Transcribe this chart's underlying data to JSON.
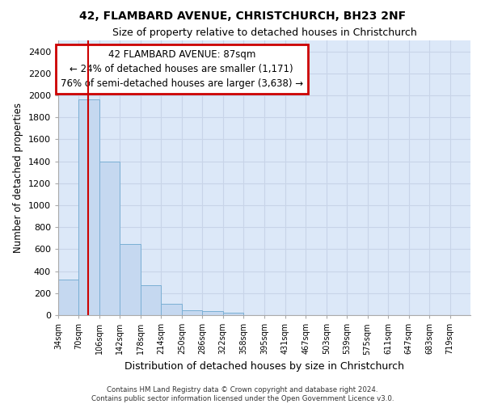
{
  "title": "42, FLAMBARD AVENUE, CHRISTCHURCH, BH23 2NF",
  "subtitle": "Size of property relative to detached houses in Christchurch",
  "xlabel": "Distribution of detached houses by size in Christchurch",
  "ylabel": "Number of detached properties",
  "bin_edges": [
    34,
    70,
    106,
    142,
    178,
    214,
    250,
    286,
    322,
    358,
    395,
    431,
    467,
    503,
    539,
    575,
    611,
    647,
    683,
    719,
    755
  ],
  "bar_heights": [
    325,
    1960,
    1400,
    645,
    270,
    100,
    45,
    38,
    22,
    0,
    0,
    0,
    0,
    0,
    0,
    0,
    0,
    0,
    0,
    0
  ],
  "bar_color": "#c5d8f0",
  "bar_edge_color": "#7aafd4",
  "property_size": 87,
  "red_line_color": "#cc0000",
  "annotation_line1": "42 FLAMBARD AVENUE: 87sqm",
  "annotation_line2": "← 24% of detached houses are smaller (1,171)",
  "annotation_line3": "76% of semi-detached houses are larger (3,638) →",
  "annotation_box_color": "#ffffff",
  "annotation_box_edge": "#cc0000",
  "ylim": [
    0,
    2500
  ],
  "yticks": [
    0,
    200,
    400,
    600,
    800,
    1000,
    1200,
    1400,
    1600,
    1800,
    2000,
    2200,
    2400
  ],
  "grid_color": "#c8d4e8",
  "background_color": "#dce8f8",
  "footer_line1": "Contains HM Land Registry data © Crown copyright and database right 2024.",
  "footer_line2": "Contains public sector information licensed under the Open Government Licence v3.0."
}
